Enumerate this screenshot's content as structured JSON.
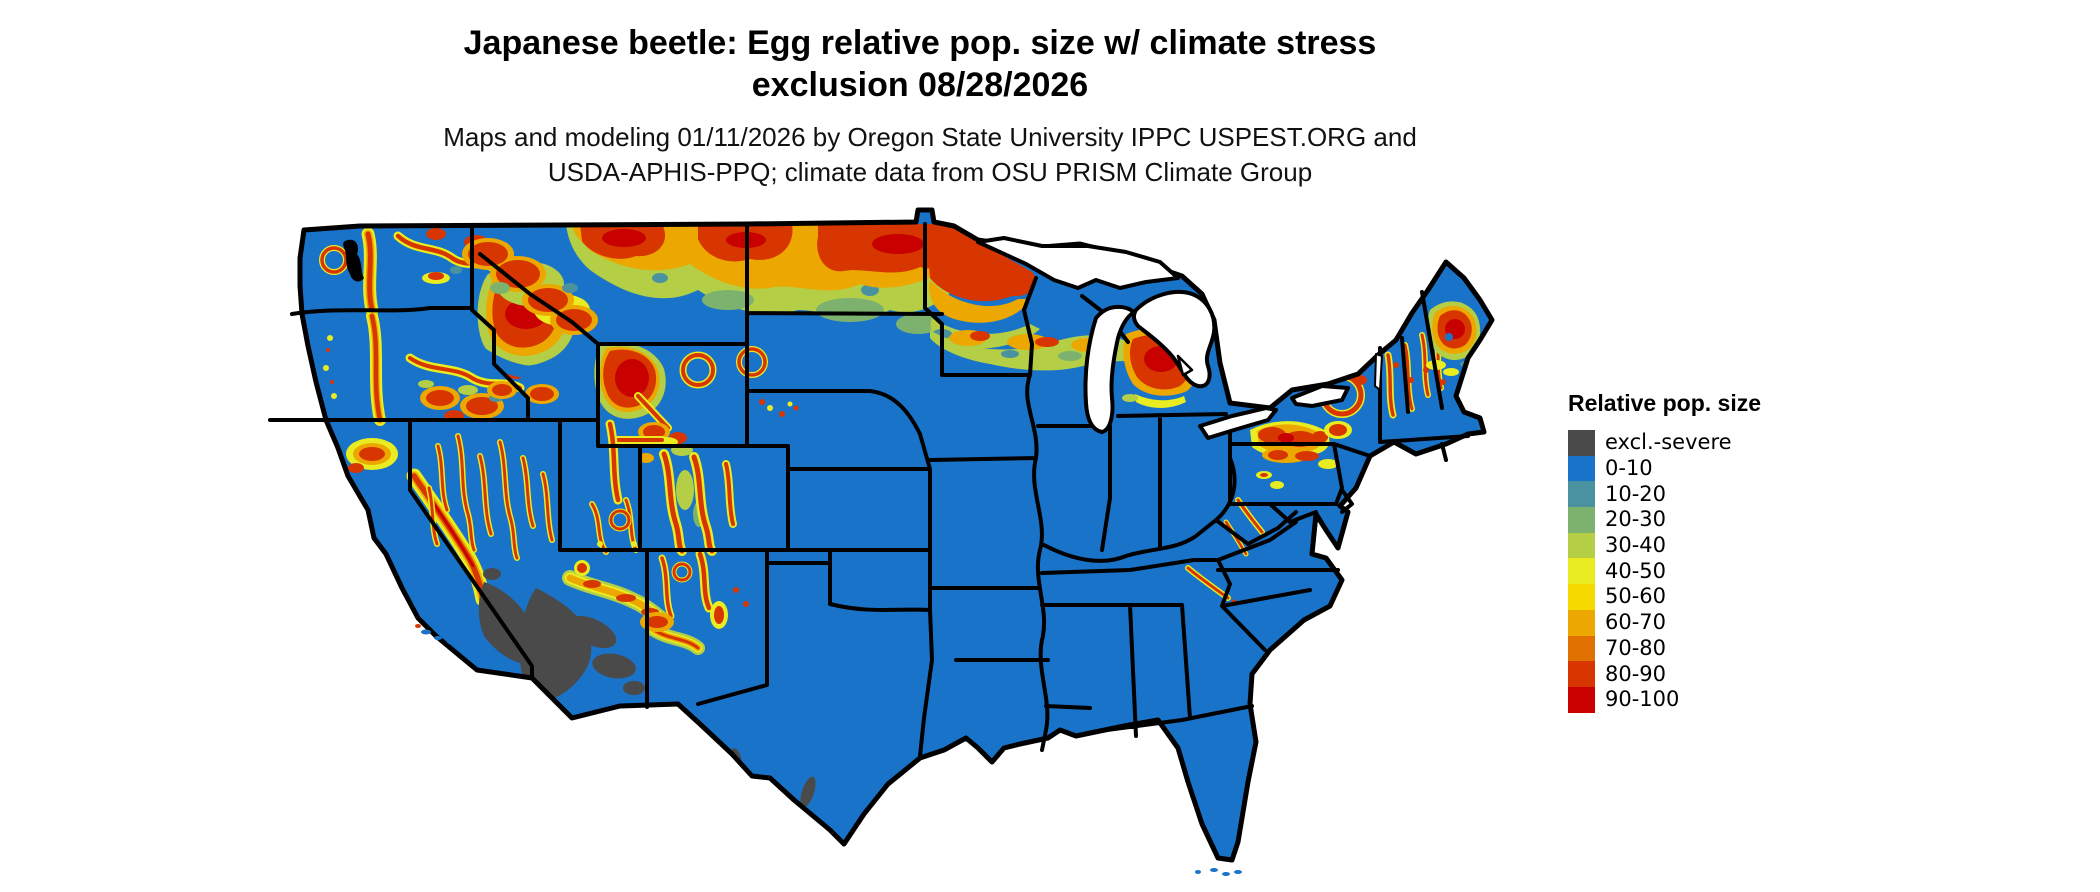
{
  "title": {
    "line1": "Japanese beetle: Egg relative pop. size w/ climate stress",
    "line2": "exclusion 08/28/2026"
  },
  "subtitle": {
    "line1": "Maps and modeling 01/11/2026 by Oregon State University IPPC USPEST.ORG and",
    "line2": "USDA-APHIS-PPQ; climate data from OSU PRISM Climate Group"
  },
  "legend": {
    "title": "Relative pop. size",
    "items": [
      {
        "label": "excl.-severe",
        "color": "#4a4a4a"
      },
      {
        "label": "0-10",
        "color": "#1973c8"
      },
      {
        "label": "10-20",
        "color": "#4a92a0"
      },
      {
        "label": "20-30",
        "color": "#7cb26e"
      },
      {
        "label": "30-40",
        "color": "#b4cf45"
      },
      {
        "label": "40-50",
        "color": "#e8ec20"
      },
      {
        "label": "50-60",
        "color": "#f5da00"
      },
      {
        "label": "60-70",
        "color": "#eca800"
      },
      {
        "label": "70-80",
        "color": "#e07000"
      },
      {
        "label": "80-90",
        "color": "#d73600"
      },
      {
        "label": "90-100",
        "color": "#c80000"
      }
    ]
  },
  "map": {
    "region": "Continental United States",
    "land_color": "#1973c8",
    "state_border_color": "#000000",
    "water_color": "#ffffff",
    "exclusion_color": "#4a4a4a"
  }
}
